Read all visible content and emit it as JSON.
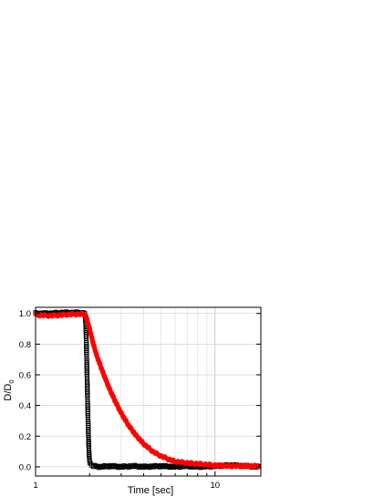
{
  "chart_data": {
    "type": "scatter",
    "xlabel": "Time [sec]",
    "ylabel_main": "D/D",
    "ylabel_sub": "0",
    "xscale": "log",
    "xlim": [
      1,
      18
    ],
    "ylim": [
      -0.06,
      1.04
    ],
    "xticks": [
      1,
      10
    ],
    "xtick_labels": [
      "1",
      "10"
    ],
    "yticks": [
      0.0,
      0.2,
      0.4,
      0.6,
      0.8,
      1.0
    ],
    "ytick_labels": [
      "0.0",
      "0.2",
      "0.4",
      "0.6",
      "0.8",
      "1.0"
    ],
    "grid": true,
    "series": [
      {
        "marker": "open-square",
        "color": "#000000",
        "x": [
          1.0,
          1.2,
          1.4,
          1.6,
          1.8,
          1.88,
          1.9,
          1.91,
          1.92,
          1.93,
          1.94,
          1.95,
          1.96,
          1.97,
          1.98,
          1.99,
          2.0,
          2.02,
          2.05,
          2.1,
          2.3,
          2.6,
          3.0,
          3.5,
          4.0,
          5.0,
          6.0,
          7.0,
          8.0,
          10.0,
          12.0,
          15.0,
          17.5
        ],
        "y": [
          1.0,
          1.0,
          1.005,
          1.005,
          1.005,
          1.0,
          0.95,
          0.88,
          0.78,
          0.66,
          0.54,
          0.42,
          0.31,
          0.21,
          0.13,
          0.07,
          0.04,
          0.02,
          0.01,
          0.005,
          0.0,
          0.005,
          0.0,
          0.005,
          0.0,
          0.005,
          0.0,
          0.005,
          0.0,
          0.005,
          0.01,
          0.005,
          0.0
        ]
      },
      {
        "marker": "filled-circle",
        "color": "#ff0000",
        "x": [
          1.0,
          1.2,
          1.4,
          1.6,
          1.8,
          1.9,
          2.0,
          2.1,
          2.2,
          2.4,
          2.6,
          2.8,
          3.0,
          3.3,
          3.6,
          4.0,
          4.5,
          5.0,
          5.5,
          6.0,
          7.0,
          8.0,
          9.0,
          10.0,
          12.0,
          14.0,
          17.5
        ],
        "y": [
          0.99,
          0.985,
          0.99,
          0.995,
          0.995,
          0.99,
          0.9,
          0.8,
          0.72,
          0.6,
          0.5,
          0.42,
          0.35,
          0.27,
          0.21,
          0.15,
          0.1,
          0.07,
          0.05,
          0.035,
          0.025,
          0.02,
          0.015,
          0.01,
          0.005,
          0.005,
          0.005
        ]
      }
    ]
  }
}
